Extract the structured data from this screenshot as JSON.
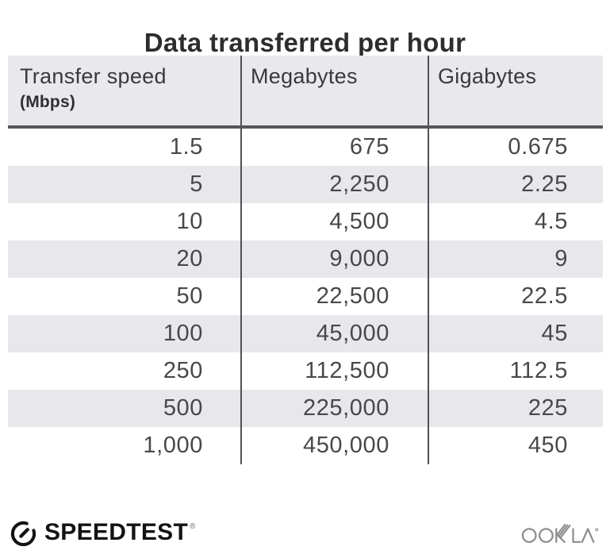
{
  "title": "Data transferred per hour",
  "chart_data": {
    "type": "table",
    "title": "Data transferred per hour",
    "columns": [
      "Transfer speed (Mbps)",
      "Megabytes",
      "Gigabytes"
    ],
    "rows": [
      [
        1.5,
        675,
        0.675
      ],
      [
        5,
        2250,
        2.25
      ],
      [
        10,
        4500,
        4.5
      ],
      [
        20,
        9000,
        9
      ],
      [
        50,
        22500,
        22.5
      ],
      [
        100,
        45000,
        45
      ],
      [
        250,
        112500,
        112.5
      ],
      [
        500,
        225000,
        225
      ],
      [
        1000,
        450000,
        450
      ]
    ]
  },
  "table": {
    "columns": [
      {
        "label": "Transfer speed",
        "sublabel": "(Mbps)"
      },
      {
        "label": "Megabytes"
      },
      {
        "label": "Gigabytes"
      }
    ],
    "rows": [
      [
        "1.5",
        "675",
        "0.675"
      ],
      [
        "5",
        "2,250",
        "2.25"
      ],
      [
        "10",
        "4,500",
        "4.5"
      ],
      [
        "20",
        "9,000",
        "9"
      ],
      [
        "50",
        "22,500",
        "22.5"
      ],
      [
        "100",
        "45,000",
        "45"
      ],
      [
        "250",
        "112,500",
        "112.5"
      ],
      [
        "500",
        "225,000",
        "225"
      ],
      [
        "1,000",
        "450,000",
        "450"
      ]
    ]
  },
  "footer": {
    "speedtest_label": "SPEEDTEST",
    "speedtest_trademark": "®",
    "ookla_label": "OOKLA",
    "ookla_trademark": "®"
  },
  "colors": {
    "band_gray": "#e8e8ec",
    "header_gray": "#e9e9ed",
    "column_divider": "#515155",
    "header_rule": "#56565a",
    "title_text": "#2d2d2f",
    "data_text": "#48484b",
    "speedtest_black": "#131316",
    "ookla_gray": "#8f8f92"
  }
}
